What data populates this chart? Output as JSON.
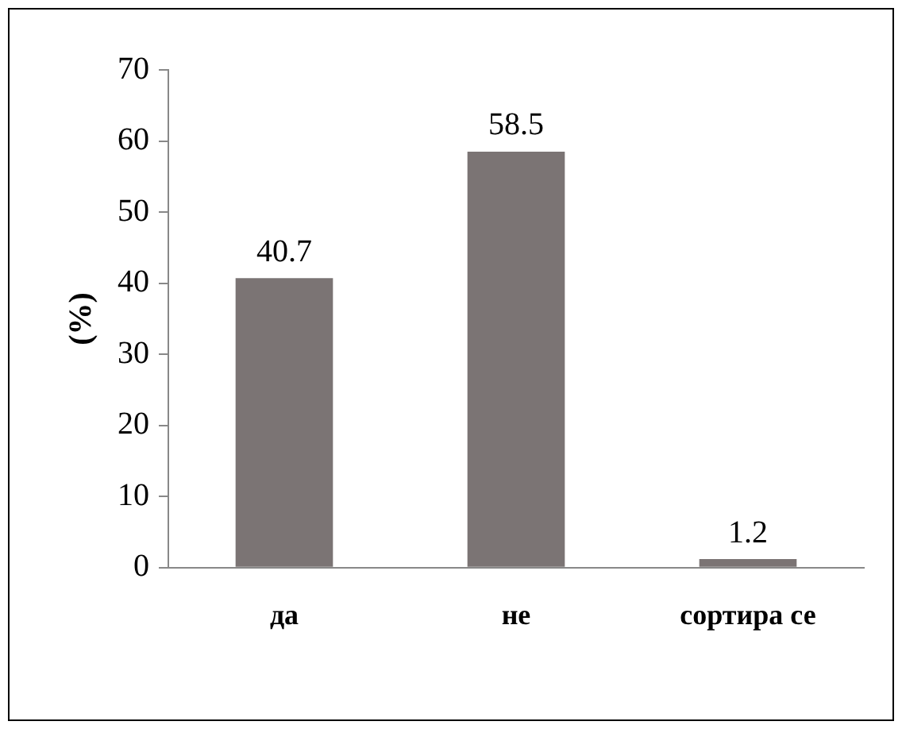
{
  "chart_data": {
    "type": "bar",
    "ylabel": "(%)",
    "categories": [
      "да",
      "не",
      "сортира се"
    ],
    "values": [
      40.7,
      58.5,
      1.2
    ],
    "color": "#7b7474",
    "ylim": [
      0,
      70
    ],
    "yticks": [
      0,
      10,
      20,
      30,
      40,
      50,
      60,
      70
    ],
    "grid": false,
    "legend": false,
    "data_labels": true
  }
}
